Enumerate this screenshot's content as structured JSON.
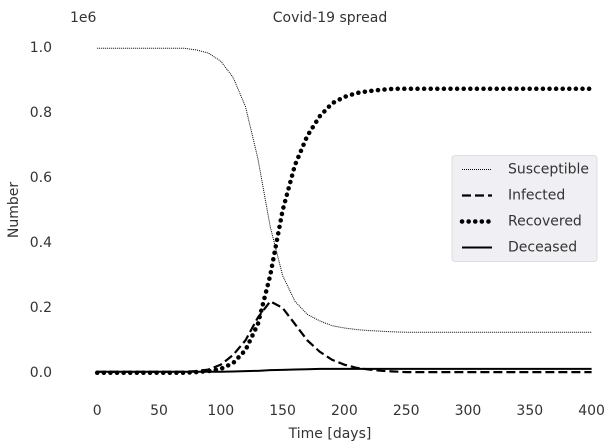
{
  "chart_data": {
    "type": "line",
    "title": "Covid-19 spread",
    "x_label": "Time [days]",
    "y_label": "Number",
    "y_offset_label": "1e6",
    "x": [
      0,
      10,
      20,
      30,
      40,
      50,
      60,
      70,
      80,
      90,
      100,
      110,
      120,
      130,
      140,
      150,
      160,
      170,
      180,
      190,
      200,
      210,
      220,
      230,
      240,
      250,
      260,
      270,
      280,
      290,
      300,
      310,
      320,
      330,
      340,
      350,
      360,
      370,
      380,
      390,
      400
    ],
    "series": [
      {
        "name": "Susceptible",
        "color": "#000000",
        "linestyle": "dot",
        "values": [
          1.0,
          1.0,
          1.0,
          1.0,
          1.0,
          1.0,
          1.0,
          1.0,
          0.995,
          0.985,
          0.96,
          0.91,
          0.82,
          0.66,
          0.45,
          0.3,
          0.22,
          0.18,
          0.16,
          0.145,
          0.138,
          0.133,
          0.13,
          0.128,
          0.126,
          0.125,
          0.125,
          0.125,
          0.125,
          0.125,
          0.125,
          0.125,
          0.125,
          0.125,
          0.125,
          0.125,
          0.125,
          0.125,
          0.125,
          0.125,
          0.125
        ]
      },
      {
        "name": "Infected",
        "color": "#000000",
        "linestyle": "dash",
        "values": [
          0.003,
          0.003,
          0.003,
          0.003,
          0.003,
          0.003,
          0.003,
          0.003,
          0.005,
          0.01,
          0.025,
          0.055,
          0.1,
          0.17,
          0.22,
          0.2,
          0.15,
          0.1,
          0.065,
          0.04,
          0.025,
          0.015,
          0.01,
          0.006,
          0.004,
          0.002,
          0.002,
          0.002,
          0.002,
          0.002,
          0.002,
          0.002,
          0.002,
          0.002,
          0.002,
          0.002,
          0.002,
          0.002,
          0.002,
          0.002,
          0.002
        ]
      },
      {
        "name": "Recovered",
        "color": "#000000",
        "linestyle": "thick-dot",
        "values": [
          0,
          0,
          0,
          0,
          0,
          0,
          0,
          0,
          0.002,
          0.005,
          0.012,
          0.03,
          0.07,
          0.15,
          0.3,
          0.5,
          0.64,
          0.73,
          0.79,
          0.83,
          0.85,
          0.862,
          0.868,
          0.872,
          0.875,
          0.875,
          0.875,
          0.875,
          0.875,
          0.875,
          0.875,
          0.875,
          0.875,
          0.875,
          0.875,
          0.875,
          0.875,
          0.875,
          0.875,
          0.875,
          0.875
        ]
      },
      {
        "name": "Deceased",
        "color": "#000000",
        "linestyle": "solid",
        "values": [
          0.003,
          0.003,
          0.003,
          0.003,
          0.003,
          0.003,
          0.003,
          0.003,
          0.003,
          0.003,
          0.003,
          0.004,
          0.005,
          0.006,
          0.008,
          0.009,
          0.01,
          0.011,
          0.012,
          0.012,
          0.012,
          0.012,
          0.012,
          0.012,
          0.012,
          0.012,
          0.012,
          0.012,
          0.012,
          0.012,
          0.012,
          0.012,
          0.012,
          0.012,
          0.012,
          0.012,
          0.012,
          0.012,
          0.012,
          0.012,
          0.012
        ]
      }
    ],
    "xlim": [
      -22,
      406
    ],
    "ylim": [
      -0.05,
      1.05
    ],
    "xticks": [
      0,
      50,
      100,
      150,
      200,
      250,
      300,
      350,
      400
    ],
    "yticks": [
      {
        "value": 0,
        "label": "0.0"
      },
      0.2,
      0.4,
      0.6,
      0.8,
      {
        "value": 1,
        "label": "1.0"
      }
    ],
    "grid": false,
    "legend": "center right"
  }
}
